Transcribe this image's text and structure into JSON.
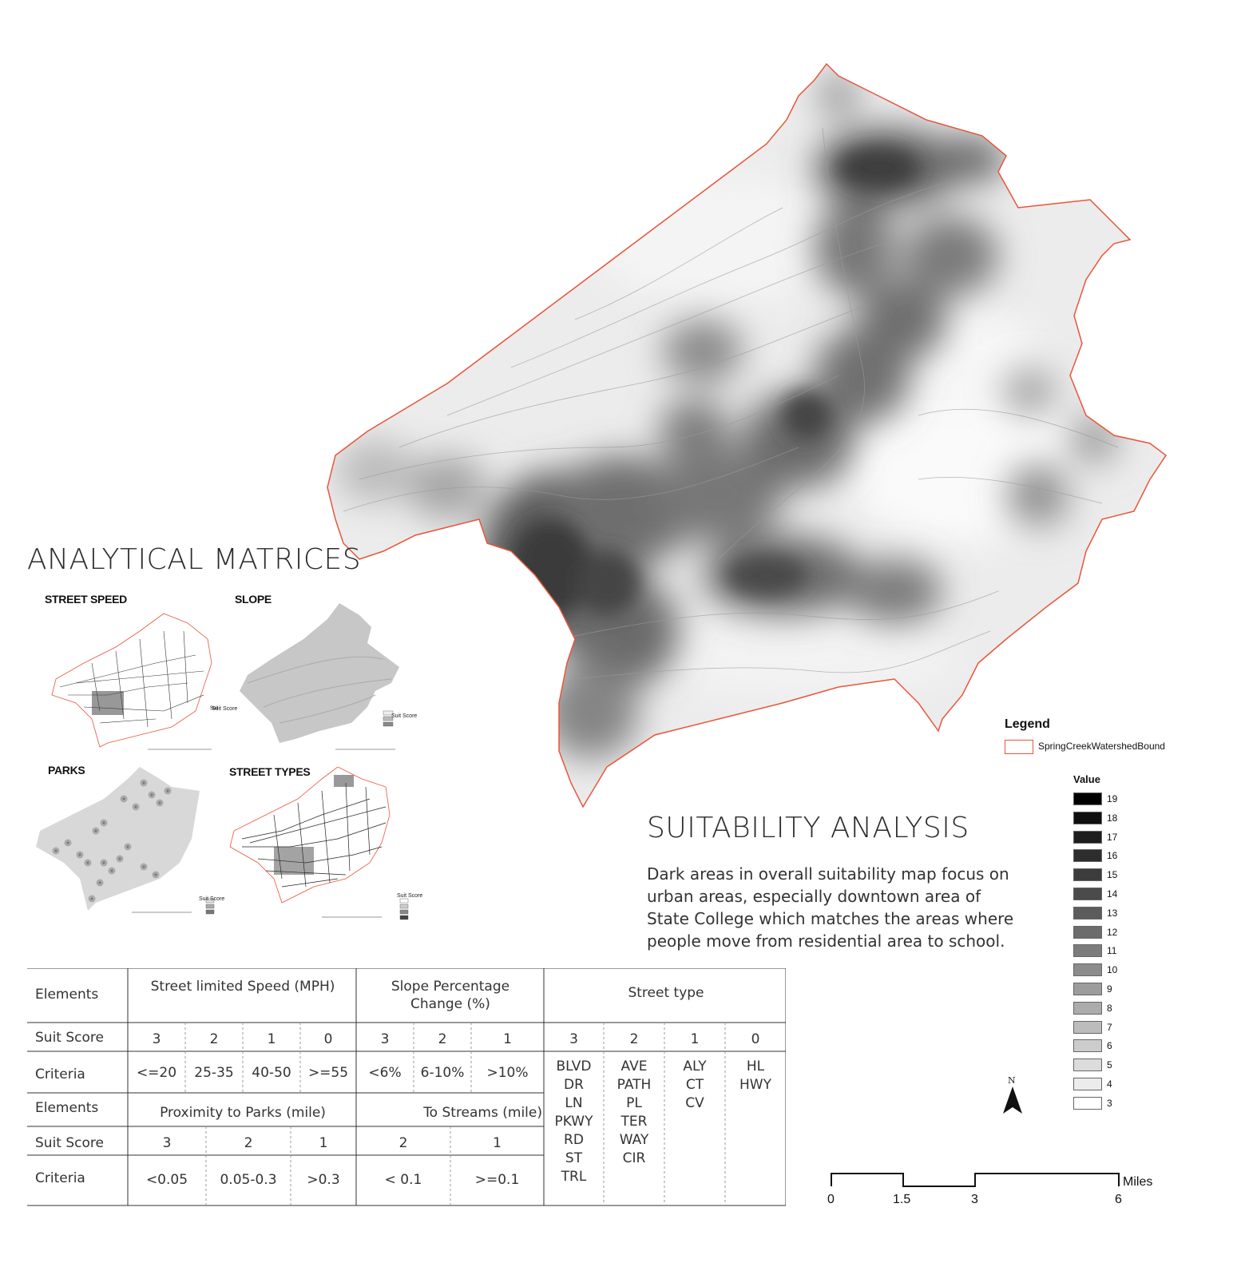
{
  "analytical_title": "ANALYTICAL MATRICES",
  "mini_maps": {
    "street_speed": {
      "title": "STREET SPEED",
      "legend_title": "Suit Score",
      "legend_values": [
        "0",
        "1",
        "2",
        "3"
      ]
    },
    "slope": {
      "title": "SLOPE",
      "legend_title": "Suit Score",
      "legend_values": [
        "1",
        "2",
        "3"
      ]
    },
    "parks": {
      "title": "PARKS",
      "legend_title": "Suit Score",
      "legend_values": [
        "1",
        "2",
        "3"
      ]
    },
    "street_types": {
      "title": "STREET TYPES",
      "legend_title": "Suit Score",
      "legend_values": [
        "0",
        "1",
        "2",
        "3"
      ]
    }
  },
  "suitability": {
    "title": "SUITABILITY ANALYSIS",
    "description": "Dark areas in overall suitability map focus on urban areas, especially downtown area of State College which matches the areas where people move from residential area to school."
  },
  "legend": {
    "title": "Legend",
    "boundary_label": "SpringCreekWatershedBound",
    "boundary_color": "#e8553a",
    "value_title": "Value",
    "values": [
      {
        "label": "19",
        "color": "#000000"
      },
      {
        "label": "18",
        "color": "#0f0f0f"
      },
      {
        "label": "17",
        "color": "#1e1e1e"
      },
      {
        "label": "16",
        "color": "#2d2d2d"
      },
      {
        "label": "15",
        "color": "#3c3c3c"
      },
      {
        "label": "14",
        "color": "#4b4b4b"
      },
      {
        "label": "13",
        "color": "#5c5c5c"
      },
      {
        "label": "12",
        "color": "#6c6c6c"
      },
      {
        "label": "11",
        "color": "#7c7c7c"
      },
      {
        "label": "10",
        "color": "#8c8c8c"
      },
      {
        "label": "9",
        "color": "#9c9c9c"
      },
      {
        "label": "8",
        "color": "#acacac"
      },
      {
        "label": "7",
        "color": "#bcbcbc"
      },
      {
        "label": "6",
        "color": "#cccccc"
      },
      {
        "label": "5",
        "color": "#dcdcdc"
      },
      {
        "label": "4",
        "color": "#ececec"
      },
      {
        "label": "3",
        "color": "#ffffff"
      }
    ]
  },
  "north_arrow": {
    "label": "N"
  },
  "scale_bar": {
    "ticks": [
      "0",
      "1.5",
      "3",
      "6"
    ],
    "unit": "Miles"
  },
  "table": {
    "row1": {
      "elements_label": "Elements",
      "groups": [
        "Street limited Speed (MPH)",
        "Slope Percentage Change (%)",
        "Street type"
      ]
    },
    "row2": {
      "label": "Suit Score",
      "scores": [
        "3",
        "2",
        "1",
        "0",
        "3",
        "2",
        "1",
        "3",
        "2",
        "1",
        "0"
      ]
    },
    "row3": {
      "label": "Criteria",
      "criteria": [
        "<=20",
        "25-35",
        "40-50",
        ">=55",
        "<6%",
        "6-10%",
        ">10%"
      ],
      "street_types": [
        [
          "BLVD",
          "DR",
          "LN",
          "PKWY",
          "RD",
          "ST",
          "TRL"
        ],
        [
          "AVE",
          "PATH",
          "PL",
          "TER",
          "WAY",
          "CIR"
        ],
        [
          "ALY",
          "CT",
          "CV"
        ],
        [
          "HL",
          "HWY"
        ]
      ]
    },
    "row4": {
      "elements_label": "Elements",
      "groups": [
        "Proximity to Parks (mile)",
        "To Streams (mile)"
      ]
    },
    "row5": {
      "label": "Suit Score",
      "scores": [
        "3",
        "2",
        "1",
        "2",
        "1"
      ]
    },
    "row6": {
      "label": "Criteria",
      "criteria": [
        "<0.05",
        "0.05-0.3",
        ">0.3",
        "< 0.1",
        ">=0.1"
      ]
    }
  }
}
